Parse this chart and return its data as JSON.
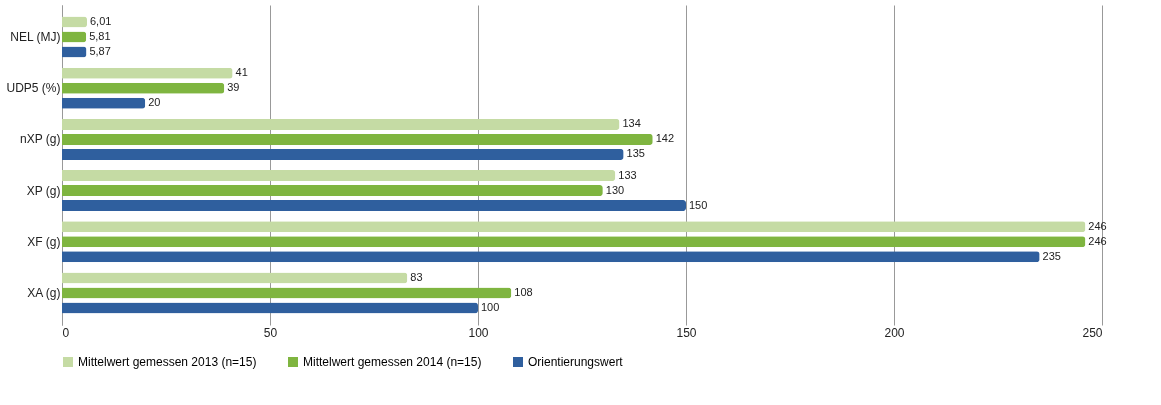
{
  "chart_data": {
    "type": "bar",
    "orientation": "horizontal",
    "categories": [
      "NEL (MJ)",
      "UDP5 (%)",
      "nXP (g)",
      "XP (g)",
      "XF (g)",
      "XA (g)"
    ],
    "series": [
      {
        "name": "Mittelwert gemessen 2013 (n=15)",
        "color": "#c5dba4",
        "values": [
          6.01,
          41,
          134,
          133,
          246,
          83
        ],
        "value_labels": [
          "6,01",
          "41",
          "134",
          "133",
          "246",
          "83"
        ]
      },
      {
        "name": "Mittelwert gemessen 2014 (n=15)",
        "color": "#7fb540",
        "values": [
          5.81,
          39,
          142,
          130,
          246,
          108
        ],
        "value_labels": [
          "5,81",
          "39",
          "142",
          "130",
          "246",
          "108"
        ]
      },
      {
        "name": "Orientierungswert",
        "color": "#2f5f9e",
        "values": [
          5.87,
          20,
          135,
          150,
          235,
          100
        ],
        "value_labels": [
          "5,87",
          "20",
          "135",
          "150",
          "235",
          "100"
        ]
      }
    ],
    "xlim": [
      0,
      250
    ],
    "xticks": [
      0,
      50,
      100,
      150,
      200,
      250
    ],
    "grid": "x",
    "legend": "bottom"
  }
}
